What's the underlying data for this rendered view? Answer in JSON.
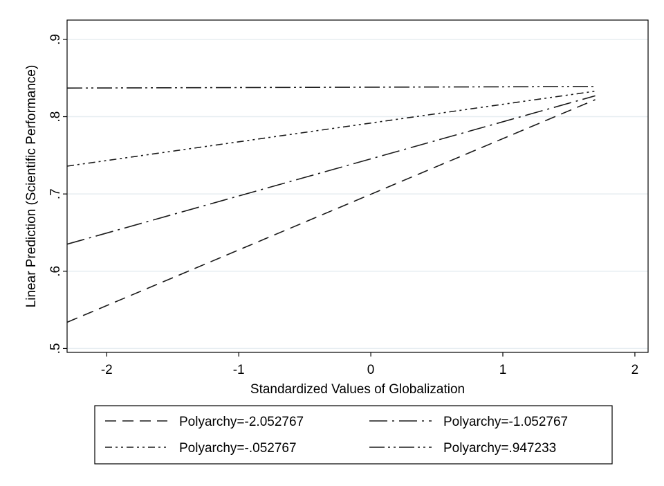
{
  "chart_data": {
    "type": "line",
    "title": "",
    "xlabel": "Standardized Values of Globalization",
    "ylabel": "Linear Prediction (Scientific Performance)",
    "xlim": [
      -2.3,
      2.1
    ],
    "ylim": [
      0.495,
      0.925
    ],
    "xticks": [
      -2,
      -1,
      0,
      1,
      2
    ],
    "xtick_labels": [
      "-2",
      "-1",
      "0",
      "1",
      "2"
    ],
    "yticks": [
      0.5,
      0.6,
      0.7,
      0.8,
      0.9
    ],
    "ytick_labels": [
      ".5",
      ".6",
      ".7",
      ".8",
      ".9"
    ],
    "grid": true,
    "legend_position": "bottom",
    "series": [
      {
        "name": "Polyarchy=-2.052767",
        "dash": "long-dash",
        "x": [
          -2.3,
          1.7
        ],
        "values": [
          0.534,
          0.822
        ]
      },
      {
        "name": "Polyarchy=-1.052767",
        "dash": "long-dash-dot",
        "x": [
          -2.3,
          1.7
        ],
        "values": [
          0.635,
          0.827
        ]
      },
      {
        "name": "Polyarchy=-.052767",
        "dash": "dash-dot-dot",
        "x": [
          -2.3,
          1.7
        ],
        "values": [
          0.736,
          0.833
        ]
      },
      {
        "name": "Polyarchy=.947233",
        "dash": "long-dash-dot-dot",
        "x": [
          -2.3,
          1.7
        ],
        "values": [
          0.837,
          0.839
        ]
      }
    ]
  }
}
